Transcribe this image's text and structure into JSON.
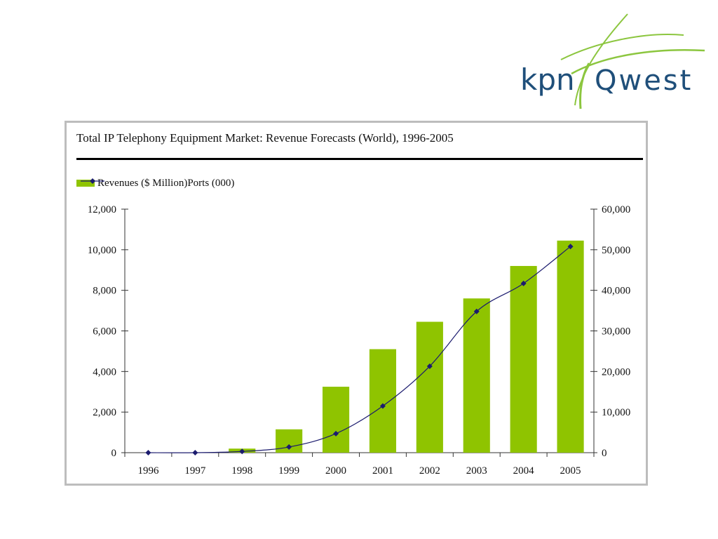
{
  "logo": {
    "text_left": "kpn",
    "text_right": "Qwest",
    "icon": "kpnqwest-swoosh-icon"
  },
  "colors": {
    "bar": "#8fc400",
    "line": "#1b1b6e",
    "logo_text": "#1f4f7a",
    "logo_swoosh": "#8cc63f"
  },
  "chart_data": {
    "type": "bar",
    "title": "Total IP Telephony Equipment Market: Revenue Forecasts (World), 1996-2005",
    "categories": [
      "1996",
      "1997",
      "1998",
      "1999",
      "2000",
      "2001",
      "2002",
      "2003",
      "2004",
      "2005"
    ],
    "series": [
      {
        "name": "Revenues ($ Million)",
        "type": "bar",
        "axis": "left",
        "values": [
          0,
          0,
          200,
          1150,
          3250,
          5100,
          6450,
          7600,
          9200,
          10450
        ]
      },
      {
        "name": "Ports (000)",
        "type": "line",
        "axis": "right",
        "values": [
          0,
          0,
          300,
          1400,
          4700,
          11500,
          21300,
          34800,
          41700,
          50800
        ]
      }
    ],
    "y_left": {
      "range": [
        0,
        12000
      ],
      "ticks": [
        "0",
        "2,000",
        "4,000",
        "6,000",
        "8,000",
        "10,000",
        "12,000"
      ]
    },
    "y_right": {
      "range": [
        0,
        60000
      ],
      "ticks": [
        "0",
        "10,000",
        "20,000",
        "30,000",
        "40,000",
        "50,000",
        "60,000"
      ]
    },
    "grid": false,
    "legend_position": "top-left"
  }
}
